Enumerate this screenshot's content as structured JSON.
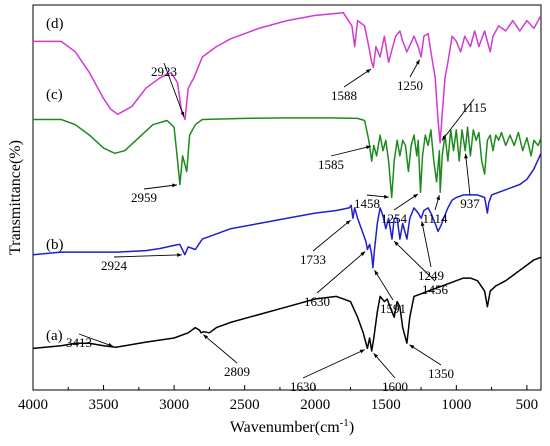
{
  "chart_data": {
    "type": "line",
    "title": "",
    "xlabel": "Wavenumber(cm",
    "xlabel_sup": "-1",
    "xlabel_close": ")",
    "ylabel": "Transmittance(%)",
    "xlim": [
      4000,
      400
    ],
    "x_reversed": true,
    "x_ticks": [
      4000,
      3500,
      3000,
      2500,
      2000,
      1500,
      1000,
      500
    ],
    "y_ticks_shown": false,
    "grid": false,
    "legend": "none",
    "series": [
      {
        "name": "(d)",
        "color": "#d23ad2",
        "points": [
          [
            4000,
            8.3
          ],
          [
            3800,
            8.3
          ],
          [
            3700,
            8.1
          ],
          [
            3600,
            7.7
          ],
          [
            3500,
            7.2
          ],
          [
            3450,
            7.0
          ],
          [
            3400,
            6.9
          ],
          [
            3300,
            7.05
          ],
          [
            3200,
            7.4
          ],
          [
            3100,
            7.6
          ],
          [
            3020,
            7.7
          ],
          [
            2975,
            7.5
          ],
          [
            2950,
            7.0
          ],
          [
            2923,
            6.8
          ],
          [
            2900,
            7.4
          ],
          [
            2860,
            7.6
          ],
          [
            2800,
            8.0
          ],
          [
            2700,
            8.2
          ],
          [
            2600,
            8.35
          ],
          [
            2400,
            8.55
          ],
          [
            2200,
            8.7
          ],
          [
            2000,
            8.8
          ],
          [
            1800,
            8.85
          ],
          [
            1740,
            8.6
          ],
          [
            1720,
            8.2
          ],
          [
            1700,
            8.7
          ],
          [
            1650,
            8.6
          ],
          [
            1620,
            8.2
          ],
          [
            1600,
            7.9
          ],
          [
            1588,
            7.8
          ],
          [
            1570,
            8.2
          ],
          [
            1540,
            8.0
          ],
          [
            1510,
            8.4
          ],
          [
            1480,
            7.9
          ],
          [
            1460,
            8.1
          ],
          [
            1430,
            8.4
          ],
          [
            1400,
            8.5
          ],
          [
            1380,
            8.3
          ],
          [
            1350,
            8.1
          ],
          [
            1300,
            8.4
          ],
          [
            1270,
            8.2
          ],
          [
            1250,
            8.0
          ],
          [
            1230,
            8.4
          ],
          [
            1200,
            8.45
          ],
          [
            1180,
            8.1
          ],
          [
            1150,
            7.6
          ],
          [
            1130,
            6.8
          ],
          [
            1115,
            6.35
          ],
          [
            1100,
            6.9
          ],
          [
            1080,
            7.6
          ],
          [
            1060,
            7.9
          ],
          [
            1030,
            8.4
          ],
          [
            1000,
            8.3
          ],
          [
            970,
            8.1
          ],
          [
            940,
            8.4
          ],
          [
            900,
            8.2
          ],
          [
            870,
            8.5
          ],
          [
            840,
            8.2
          ],
          [
            800,
            8.5
          ],
          [
            760,
            8.1
          ],
          [
            740,
            8.4
          ],
          [
            700,
            8.6
          ],
          [
            650,
            8.5
          ],
          [
            600,
            8.7
          ],
          [
            550,
            8.5
          ],
          [
            500,
            8.7
          ],
          [
            450,
            8.55
          ],
          [
            400,
            8.8
          ]
        ]
      },
      {
        "name": "(c)",
        "color": "#1e8a1e",
        "points": [
          [
            4000,
            6.8
          ],
          [
            3800,
            6.8
          ],
          [
            3700,
            6.7
          ],
          [
            3600,
            6.5
          ],
          [
            3500,
            6.25
          ],
          [
            3420,
            6.15
          ],
          [
            3350,
            6.2
          ],
          [
            3250,
            6.45
          ],
          [
            3150,
            6.7
          ],
          [
            3050,
            6.78
          ],
          [
            3000,
            6.65
          ],
          [
            2975,
            6.0
          ],
          [
            2959,
            5.55
          ],
          [
            2940,
            6.1
          ],
          [
            2910,
            5.8
          ],
          [
            2890,
            6.5
          ],
          [
            2850,
            6.7
          ],
          [
            2800,
            6.8
          ],
          [
            2500,
            6.82
          ],
          [
            2200,
            6.83
          ],
          [
            1900,
            6.83
          ],
          [
            1700,
            6.82
          ],
          [
            1650,
            6.78
          ],
          [
            1620,
            6.4
          ],
          [
            1600,
            6.0
          ],
          [
            1585,
            6.3
          ],
          [
            1565,
            6.1
          ],
          [
            1540,
            6.5
          ],
          [
            1520,
            6.2
          ],
          [
            1500,
            6.4
          ],
          [
            1480,
            6.0
          ],
          [
            1458,
            5.3
          ],
          [
            1440,
            6.0
          ],
          [
            1420,
            6.4
          ],
          [
            1400,
            6.1
          ],
          [
            1380,
            6.4
          ],
          [
            1360,
            6.3
          ],
          [
            1340,
            5.8
          ],
          [
            1320,
            6.3
          ],
          [
            1300,
            6.5
          ],
          [
            1280,
            6.1
          ],
          [
            1270,
            6.4
          ],
          [
            1254,
            5.4
          ],
          [
            1240,
            6.1
          ],
          [
            1220,
            6.5
          ],
          [
            1200,
            6.3
          ],
          [
            1180,
            6.6
          ],
          [
            1160,
            6.0
          ],
          [
            1140,
            5.6
          ],
          [
            1120,
            6.2
          ],
          [
            1114,
            5.4
          ],
          [
            1100,
            6.1
          ],
          [
            1080,
            6.5
          ],
          [
            1060,
            6.0
          ],
          [
            1040,
            6.6
          ],
          [
            1020,
            6.2
          ],
          [
            1000,
            6.6
          ],
          [
            980,
            6.0
          ],
          [
            960,
            6.6
          ],
          [
            937,
            6.2
          ],
          [
            920,
            6.65
          ],
          [
            900,
            6.1
          ],
          [
            880,
            6.6
          ],
          [
            860,
            6.4
          ],
          [
            840,
            6.55
          ],
          [
            820,
            6.0
          ],
          [
            800,
            5.75
          ],
          [
            780,
            6.4
          ],
          [
            760,
            6.5
          ],
          [
            740,
            6.2
          ],
          [
            720,
            6.5
          ],
          [
            700,
            6.4
          ],
          [
            680,
            6.55
          ],
          [
            650,
            6.3
          ],
          [
            620,
            6.5
          ],
          [
            590,
            6.3
          ],
          [
            560,
            6.55
          ],
          [
            530,
            6.2
          ],
          [
            500,
            6.45
          ],
          [
            470,
            6.1
          ],
          [
            450,
            6.4
          ],
          [
            420,
            6.3
          ],
          [
            400,
            6.45
          ]
        ]
      },
      {
        "name": "(b)",
        "color": "#1f1fcc",
        "points": [
          [
            4000,
            4.2
          ],
          [
            3800,
            4.25
          ],
          [
            3600,
            4.25
          ],
          [
            3400,
            4.25
          ],
          [
            3200,
            4.28
          ],
          [
            3100,
            4.32
          ],
          [
            3000,
            4.38
          ],
          [
            2960,
            4.4
          ],
          [
            2924,
            4.2
          ],
          [
            2900,
            4.35
          ],
          [
            2850,
            4.3
          ],
          [
            2800,
            4.5
          ],
          [
            2700,
            4.6
          ],
          [
            2600,
            4.7
          ],
          [
            2400,
            4.8
          ],
          [
            2200,
            4.9
          ],
          [
            2000,
            5.0
          ],
          [
            1850,
            5.05
          ],
          [
            1760,
            5.1
          ],
          [
            1745,
            5.15
          ],
          [
            1733,
            4.9
          ],
          [
            1720,
            5.1
          ],
          [
            1700,
            4.9
          ],
          [
            1680,
            4.75
          ],
          [
            1660,
            4.6
          ],
          [
            1640,
            4.45
          ],
          [
            1630,
            4.3
          ],
          [
            1615,
            4.4
          ],
          [
            1600,
            4.2
          ],
          [
            1591,
            3.95
          ],
          [
            1580,
            4.3
          ],
          [
            1560,
            4.8
          ],
          [
            1540,
            5.1
          ],
          [
            1520,
            4.95
          ],
          [
            1500,
            4.7
          ],
          [
            1480,
            4.9
          ],
          [
            1456,
            4.5
          ],
          [
            1440,
            4.9
          ],
          [
            1420,
            4.9
          ],
          [
            1400,
            4.5
          ],
          [
            1380,
            4.8
          ],
          [
            1360,
            4.6
          ],
          [
            1350,
            4.5
          ],
          [
            1330,
            4.9
          ],
          [
            1300,
            5.1
          ],
          [
            1270,
            5.0
          ],
          [
            1249,
            4.9
          ],
          [
            1230,
            5.05
          ],
          [
            1200,
            5.1
          ],
          [
            1180,
            5.0
          ],
          [
            1150,
            4.8
          ],
          [
            1130,
            4.65
          ],
          [
            1110,
            4.75
          ],
          [
            1090,
            4.9
          ],
          [
            1060,
            5.1
          ],
          [
            1030,
            5.25
          ],
          [
            1000,
            5.3
          ],
          [
            950,
            5.35
          ],
          [
            900,
            5.35
          ],
          [
            850,
            5.35
          ],
          [
            800,
            5.3
          ],
          [
            780,
            5.0
          ],
          [
            770,
            5.2
          ],
          [
            750,
            5.35
          ],
          [
            700,
            5.4
          ],
          [
            600,
            5.5
          ],
          [
            550,
            5.55
          ],
          [
            500,
            5.65
          ],
          [
            450,
            5.85
          ],
          [
            400,
            6.15
          ]
        ]
      },
      {
        "name": "(a)",
        "color": "#000000",
        "points": [
          [
            4000,
            2.4
          ],
          [
            3800,
            2.45
          ],
          [
            3700,
            2.5
          ],
          [
            3600,
            2.5
          ],
          [
            3500,
            2.45
          ],
          [
            3413,
            2.42
          ],
          [
            3350,
            2.45
          ],
          [
            3200,
            2.52
          ],
          [
            3000,
            2.6
          ],
          [
            2900,
            2.7
          ],
          [
            2850,
            2.8
          ],
          [
            2820,
            2.75
          ],
          [
            2809,
            2.7
          ],
          [
            2790,
            2.72
          ],
          [
            2750,
            2.7
          ],
          [
            2700,
            2.8
          ],
          [
            2600,
            2.9
          ],
          [
            2400,
            3.05
          ],
          [
            2200,
            3.2
          ],
          [
            2000,
            3.35
          ],
          [
            1850,
            3.4
          ],
          [
            1750,
            3.3
          ],
          [
            1700,
            3.0
          ],
          [
            1660,
            2.7
          ],
          [
            1640,
            2.5
          ],
          [
            1630,
            2.4
          ],
          [
            1615,
            2.6
          ],
          [
            1600,
            2.35
          ],
          [
            1585,
            2.6
          ],
          [
            1560,
            3.1
          ],
          [
            1540,
            3.4
          ],
          [
            1510,
            3.3
          ],
          [
            1490,
            3.35
          ],
          [
            1470,
            3.2
          ],
          [
            1440,
            3.0
          ],
          [
            1420,
            3.3
          ],
          [
            1400,
            3.2
          ],
          [
            1380,
            2.8
          ],
          [
            1360,
            2.6
          ],
          [
            1350,
            2.5
          ],
          [
            1330,
            3.0
          ],
          [
            1300,
            3.4
          ],
          [
            1250,
            3.45
          ],
          [
            1200,
            3.5
          ],
          [
            1150,
            3.55
          ],
          [
            1100,
            3.6
          ],
          [
            1050,
            3.65
          ],
          [
            1000,
            3.7
          ],
          [
            950,
            3.75
          ],
          [
            900,
            3.75
          ],
          [
            850,
            3.7
          ],
          [
            800,
            3.5
          ],
          [
            780,
            3.2
          ],
          [
            760,
            3.5
          ],
          [
            720,
            3.6
          ],
          [
            650,
            3.7
          ],
          [
            600,
            3.8
          ],
          [
            550,
            3.9
          ],
          [
            500,
            4.0
          ],
          [
            450,
            4.1
          ],
          [
            400,
            4.15
          ]
        ]
      }
    ],
    "y_pixel_note_removed": true,
    "curve_labels": [
      "(d)",
      "(c)",
      "(b)",
      "(a)"
    ],
    "annotations": [
      {
        "text": "2923",
        "series": "(d)",
        "x": 2923
      },
      {
        "text": "1588",
        "series": "(d)",
        "x": 1588
      },
      {
        "text": "1250",
        "series": "(d)",
        "x": 1250
      },
      {
        "text": "1115",
        "series": "(d)",
        "x": 1115
      },
      {
        "text": "2959",
        "series": "(c)",
        "x": 2959
      },
      {
        "text": "1585",
        "series": "(c)",
        "x": 1585
      },
      {
        "text": "1458",
        "series": "(c)",
        "x": 1458
      },
      {
        "text": "1254",
        "series": "(c)",
        "x": 1254
      },
      {
        "text": "1114",
        "series": "(c)",
        "x": 1114
      },
      {
        "text": "937",
        "series": "(c)",
        "x": 937
      },
      {
        "text": "1733",
        "series": "(b)",
        "x": 1733
      },
      {
        "text": "1630",
        "series": "(b)",
        "x": 1630
      },
      {
        "text": "1591",
        "series": "(b)",
        "x": 1591
      },
      {
        "text": "1456",
        "series": "(b)",
        "x": 1456
      },
      {
        "text": "1249",
        "series": "(b)",
        "x": 1249
      },
      {
        "text": "2924",
        "series": "(b)",
        "x": 2924
      },
      {
        "text": "3413",
        "series": "(a)",
        "x": 3413
      },
      {
        "text": "2809",
        "series": "(a)",
        "x": 2809
      },
      {
        "text": "1630",
        "series": "(a)",
        "x": 1630
      },
      {
        "text": "1600",
        "series": "(a)",
        "x": 1600
      },
      {
        "text": "1350",
        "series": "(a)",
        "x": 1350
      }
    ]
  }
}
